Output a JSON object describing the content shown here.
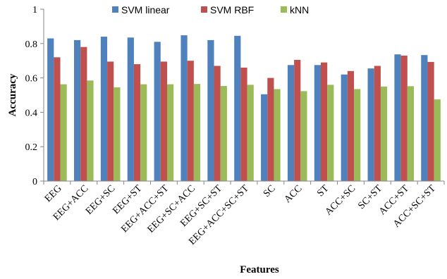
{
  "chart_data": {
    "type": "bar",
    "title": "",
    "xlabel": "Features",
    "ylabel": "Accuracy",
    "ylim": [
      0,
      1
    ],
    "yticks": [
      0,
      0.2,
      0.4,
      0.6,
      0.8,
      1
    ],
    "ytick_labels": [
      "0",
      "0.2",
      "0.4",
      "0.6",
      "0.8",
      "1"
    ],
    "grid": false,
    "legend_position": "top",
    "categories": [
      "EEG",
      "EEG+ACC",
      "EEG+SC",
      "EEG+ST",
      "EEG+ACC+ST",
      "EEG+SC+ACC",
      "EEG+SC+ST",
      "EEG+ACC+SC+ST",
      "SC",
      "ACC",
      "ST",
      "ACC+SC",
      "SC+ST",
      "ACC+ST",
      "ACC+SC+ST"
    ],
    "series": [
      {
        "name": "SVM linear",
        "color": "#4f81bd",
        "values": [
          0.83,
          0.82,
          0.84,
          0.835,
          0.81,
          0.848,
          0.82,
          0.845,
          0.505,
          0.675,
          0.675,
          0.62,
          0.655,
          0.737,
          0.733
        ]
      },
      {
        "name": "SVM RBF",
        "color": "#c0504d",
        "values": [
          0.72,
          0.78,
          0.695,
          0.68,
          0.695,
          0.7,
          0.67,
          0.66,
          0.6,
          0.705,
          0.69,
          0.64,
          0.67,
          0.73,
          0.693
        ]
      },
      {
        "name": "kNN",
        "color": "#9bbb59",
        "values": [
          0.563,
          0.585,
          0.545,
          0.563,
          0.563,
          0.565,
          0.553,
          0.56,
          0.535,
          0.523,
          0.56,
          0.535,
          0.55,
          0.552,
          0.475
        ]
      }
    ]
  }
}
